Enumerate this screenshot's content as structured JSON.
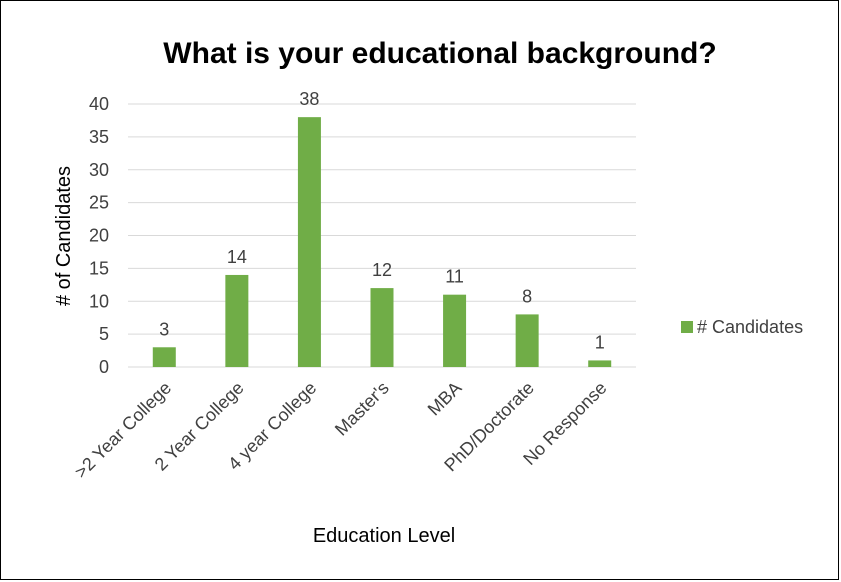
{
  "chart_data": {
    "type": "bar",
    "title": "What is your educational background?",
    "xlabel": "Education Level",
    "ylabel": "# of Candidates",
    "categories": [
      ">2 Year College",
      "2 Year College",
      "4 year College",
      "Master's",
      "MBA",
      "PhD/Doctorate",
      "No Response"
    ],
    "series": [
      {
        "name": "# Candidates",
        "values": [
          3,
          14,
          38,
          12,
          11,
          8,
          1
        ],
        "color": "#70ad47"
      }
    ],
    "ylim": [
      0,
      40
    ],
    "yticks": [
      0,
      5,
      10,
      15,
      20,
      25,
      30,
      35,
      40
    ],
    "grid": true,
    "legend_position": "right",
    "data_labels": true
  }
}
